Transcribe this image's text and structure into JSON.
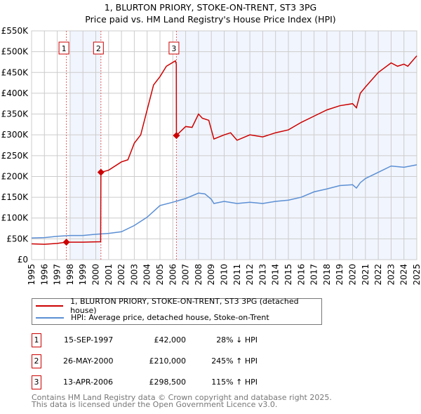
{
  "chart_data": {
    "type": "line",
    "title": "1, BLURTON PRIORY, STOKE-ON-TRENT, ST3 3PG",
    "subtitle": "Price paid vs. HM Land Registry's House Price Index (HPI)",
    "xlim": [
      1995,
      2025
    ],
    "ylim": [
      0,
      550000
    ],
    "y_ticks": [
      "£0",
      "£50K",
      "£100K",
      "£150K",
      "£200K",
      "£250K",
      "£300K",
      "£350K",
      "£400K",
      "£450K",
      "£500K",
      "£550K"
    ],
    "x_ticks": [
      "1995",
      "1996",
      "1997",
      "1998",
      "1999",
      "2000",
      "2001",
      "2002",
      "2003",
      "2004",
      "2005",
      "2006",
      "2007",
      "2008",
      "2009",
      "2010",
      "2011",
      "2012",
      "2013",
      "2014",
      "2015",
      "2016",
      "2017",
      "2018",
      "2019",
      "2020",
      "2021",
      "2022",
      "2023",
      "2024",
      "2025"
    ],
    "grid": true,
    "series": [
      {
        "name": "1, BLURTON PRIORY, STOKE-ON-TRENT, ST3 3PG (detached house)",
        "color": "#cc0000",
        "x": [
          1995,
          1996,
          1997,
          1997.71,
          1999,
          2000.38,
          2000.4,
          2001,
          2002,
          2002.5,
          2003,
          2003.5,
          2004,
          2004.5,
          2005,
          2005.5,
          2006.2,
          2006.27,
          2006.28,
          2007,
          2007.5,
          2008,
          2008.3,
          2008.8,
          2009.2,
          2010,
          2010.5,
          2011,
          2012,
          2013,
          2014,
          2015,
          2016,
          2017,
          2018,
          2019,
          2020,
          2020.3,
          2020.6,
          2021,
          2022,
          2023,
          2023.5,
          2024,
          2024.3,
          2025
        ],
        "y": [
          38000,
          37000,
          39000,
          42000,
          42000,
          43000,
          210000,
          215000,
          235000,
          240000,
          280000,
          300000,
          360000,
          420000,
          440000,
          465000,
          478000,
          470000,
          298500,
          320000,
          318000,
          350000,
          340000,
          335000,
          290000,
          300000,
          305000,
          287000,
          300000,
          295000,
          305000,
          312000,
          330000,
          345000,
          360000,
          370000,
          375000,
          365000,
          400000,
          415000,
          450000,
          473000,
          465000,
          470000,
          465000,
          490000
        ]
      },
      {
        "name": "HPI: Average price, detached house, Stoke-on-Trent",
        "color": "#5b8fd4",
        "x": [
          1995,
          1996,
          1997,
          1998,
          1999,
          2000,
          2001,
          2002,
          2003,
          2004,
          2005,
          2006,
          2007,
          2008,
          2008.5,
          2009,
          2009.2,
          2010,
          2011,
          2012,
          2013,
          2014,
          2015,
          2016,
          2017,
          2018,
          2019,
          2020,
          2020.3,
          2020.6,
          2021,
          2022,
          2023,
          2024,
          2025
        ],
        "y": [
          52000,
          53000,
          56000,
          58000,
          58000,
          61000,
          63000,
          67000,
          82000,
          102000,
          130000,
          138000,
          147000,
          160000,
          158000,
          145000,
          135000,
          140000,
          135000,
          138000,
          135000,
          140000,
          143000,
          150000,
          163000,
          170000,
          178000,
          180000,
          172000,
          185000,
          195000,
          210000,
          225000,
          222000,
          228000
        ]
      }
    ],
    "sales": [
      {
        "label": "1",
        "x": 1997.71,
        "y": 42000
      },
      {
        "label": "2",
        "x": 2000.4,
        "y": 210000
      },
      {
        "label": "3",
        "x": 2006.28,
        "y": 298500
      }
    ],
    "shaded_ranges": [
      [
        1998,
        2000.4
      ],
      [
        2006.28,
        2025
      ]
    ]
  },
  "legend": [
    "1, BLURTON PRIORY, STOKE-ON-TRENT, ST3 3PG (detached house)",
    "HPI: Average price, detached house, Stoke-on-Trent"
  ],
  "table": [
    {
      "n": "1",
      "date": "15-SEP-1997",
      "price": "£42,000",
      "hpi": "28% ↓ HPI"
    },
    {
      "n": "2",
      "date": "26-MAY-2000",
      "price": "£210,000",
      "hpi": "245% ↑ HPI"
    },
    {
      "n": "3",
      "date": "13-APR-2006",
      "price": "£298,500",
      "hpi": "115% ↑ HPI"
    }
  ],
  "footer": [
    "Contains HM Land Registry data © Crown copyright and database right 2025.",
    "This data is licensed under the Open Government Licence v3.0."
  ]
}
